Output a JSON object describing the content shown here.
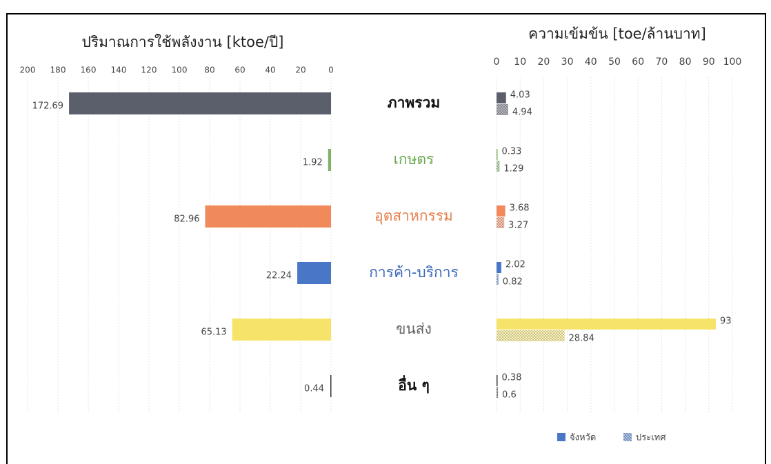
{
  "chart_data": [
    {
      "type": "bar",
      "orientation": "horizontal",
      "title": "ปริมาณการใช้พลังงาน [ktoe/ปี]",
      "categories": [
        "ภาพรวม",
        "เกษตร",
        "อุตสาหกรรม",
        "การค้า-บริการ",
        "ขนส่ง",
        "อื่น ๆ"
      ],
      "label_colors": [
        "#111111",
        "#6aa84f",
        "#e8804c",
        "#3a66b8",
        "#666666",
        "#111111"
      ],
      "values": [
        172.69,
        1.92,
        82.96,
        22.24,
        65.13,
        0.44
      ],
      "colors": [
        "#5b5f6b",
        "#7fb26a",
        "#f08a5a",
        "#4a76c8",
        "#f6e46a",
        "#333333"
      ],
      "xlim": [
        200,
        0
      ],
      "xticks": [
        200,
        180,
        160,
        140,
        120,
        100,
        80,
        60,
        40,
        20,
        0
      ],
      "grid": true
    },
    {
      "type": "bar",
      "orientation": "horizontal",
      "title": "ความเข้มข้น [toe/ล้านบาท]",
      "colors": [
        "#5b5f6b",
        "#7fb26a",
        "#f08a5a",
        "#4a76c8",
        "#f6e46a",
        "#333333"
      ],
      "series": [
        {
          "name": "จังหวัด",
          "color": "#4a76c8",
          "values": [
            4.03,
            0.33,
            3.68,
            2.02,
            93,
            0.38
          ]
        },
        {
          "name": "ประเทศ",
          "color": "#4a76c8",
          "values": [
            4.94,
            1.29,
            3.27,
            0.82,
            28.84,
            0.6
          ]
        }
      ],
      "xlim": [
        0,
        100
      ],
      "xticks": [
        0,
        10,
        20,
        30,
        40,
        50,
        60,
        70,
        80,
        90,
        100
      ],
      "grid": true,
      "legend": "bottom"
    }
  ]
}
